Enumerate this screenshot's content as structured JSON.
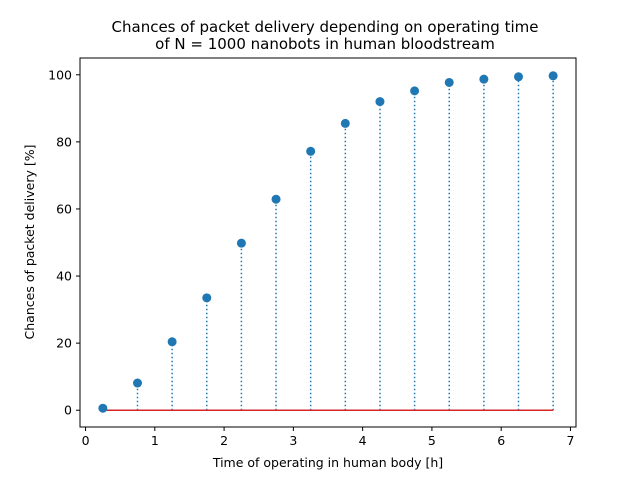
{
  "chart_data": {
    "type": "scatter",
    "title_lines": [
      "Chances of packet delivery depending on operating time",
      "of N = 1000 nanobots in human bloodstream"
    ],
    "xlabel": "Time of operating in human body [h]",
    "ylabel": "Chances of packet delivery [%]",
    "xlim": [
      -0.08,
      7.08
    ],
    "ylim": [
      -5,
      105
    ],
    "xticks": [
      0,
      1,
      2,
      3,
      4,
      5,
      6,
      7
    ],
    "yticks": [
      0,
      20,
      40,
      60,
      80,
      100
    ],
    "grid": false,
    "style": "stem",
    "series": [
      {
        "x": [
          0.25,
          0.75,
          1.25,
          1.75,
          2.25,
          2.75,
          3.25,
          3.75,
          4.25,
          4.75,
          5.25,
          5.75,
          6.25,
          6.75
        ],
        "values": [
          0.6,
          8.1,
          20.4,
          33.5,
          49.8,
          62.9,
          77.2,
          85.5,
          92.0,
          95.2,
          97.7,
          98.7,
          99.4,
          99.7
        ],
        "color": "#1f77b4"
      }
    ],
    "baseline": {
      "y": 0,
      "color": "#d62728"
    }
  }
}
